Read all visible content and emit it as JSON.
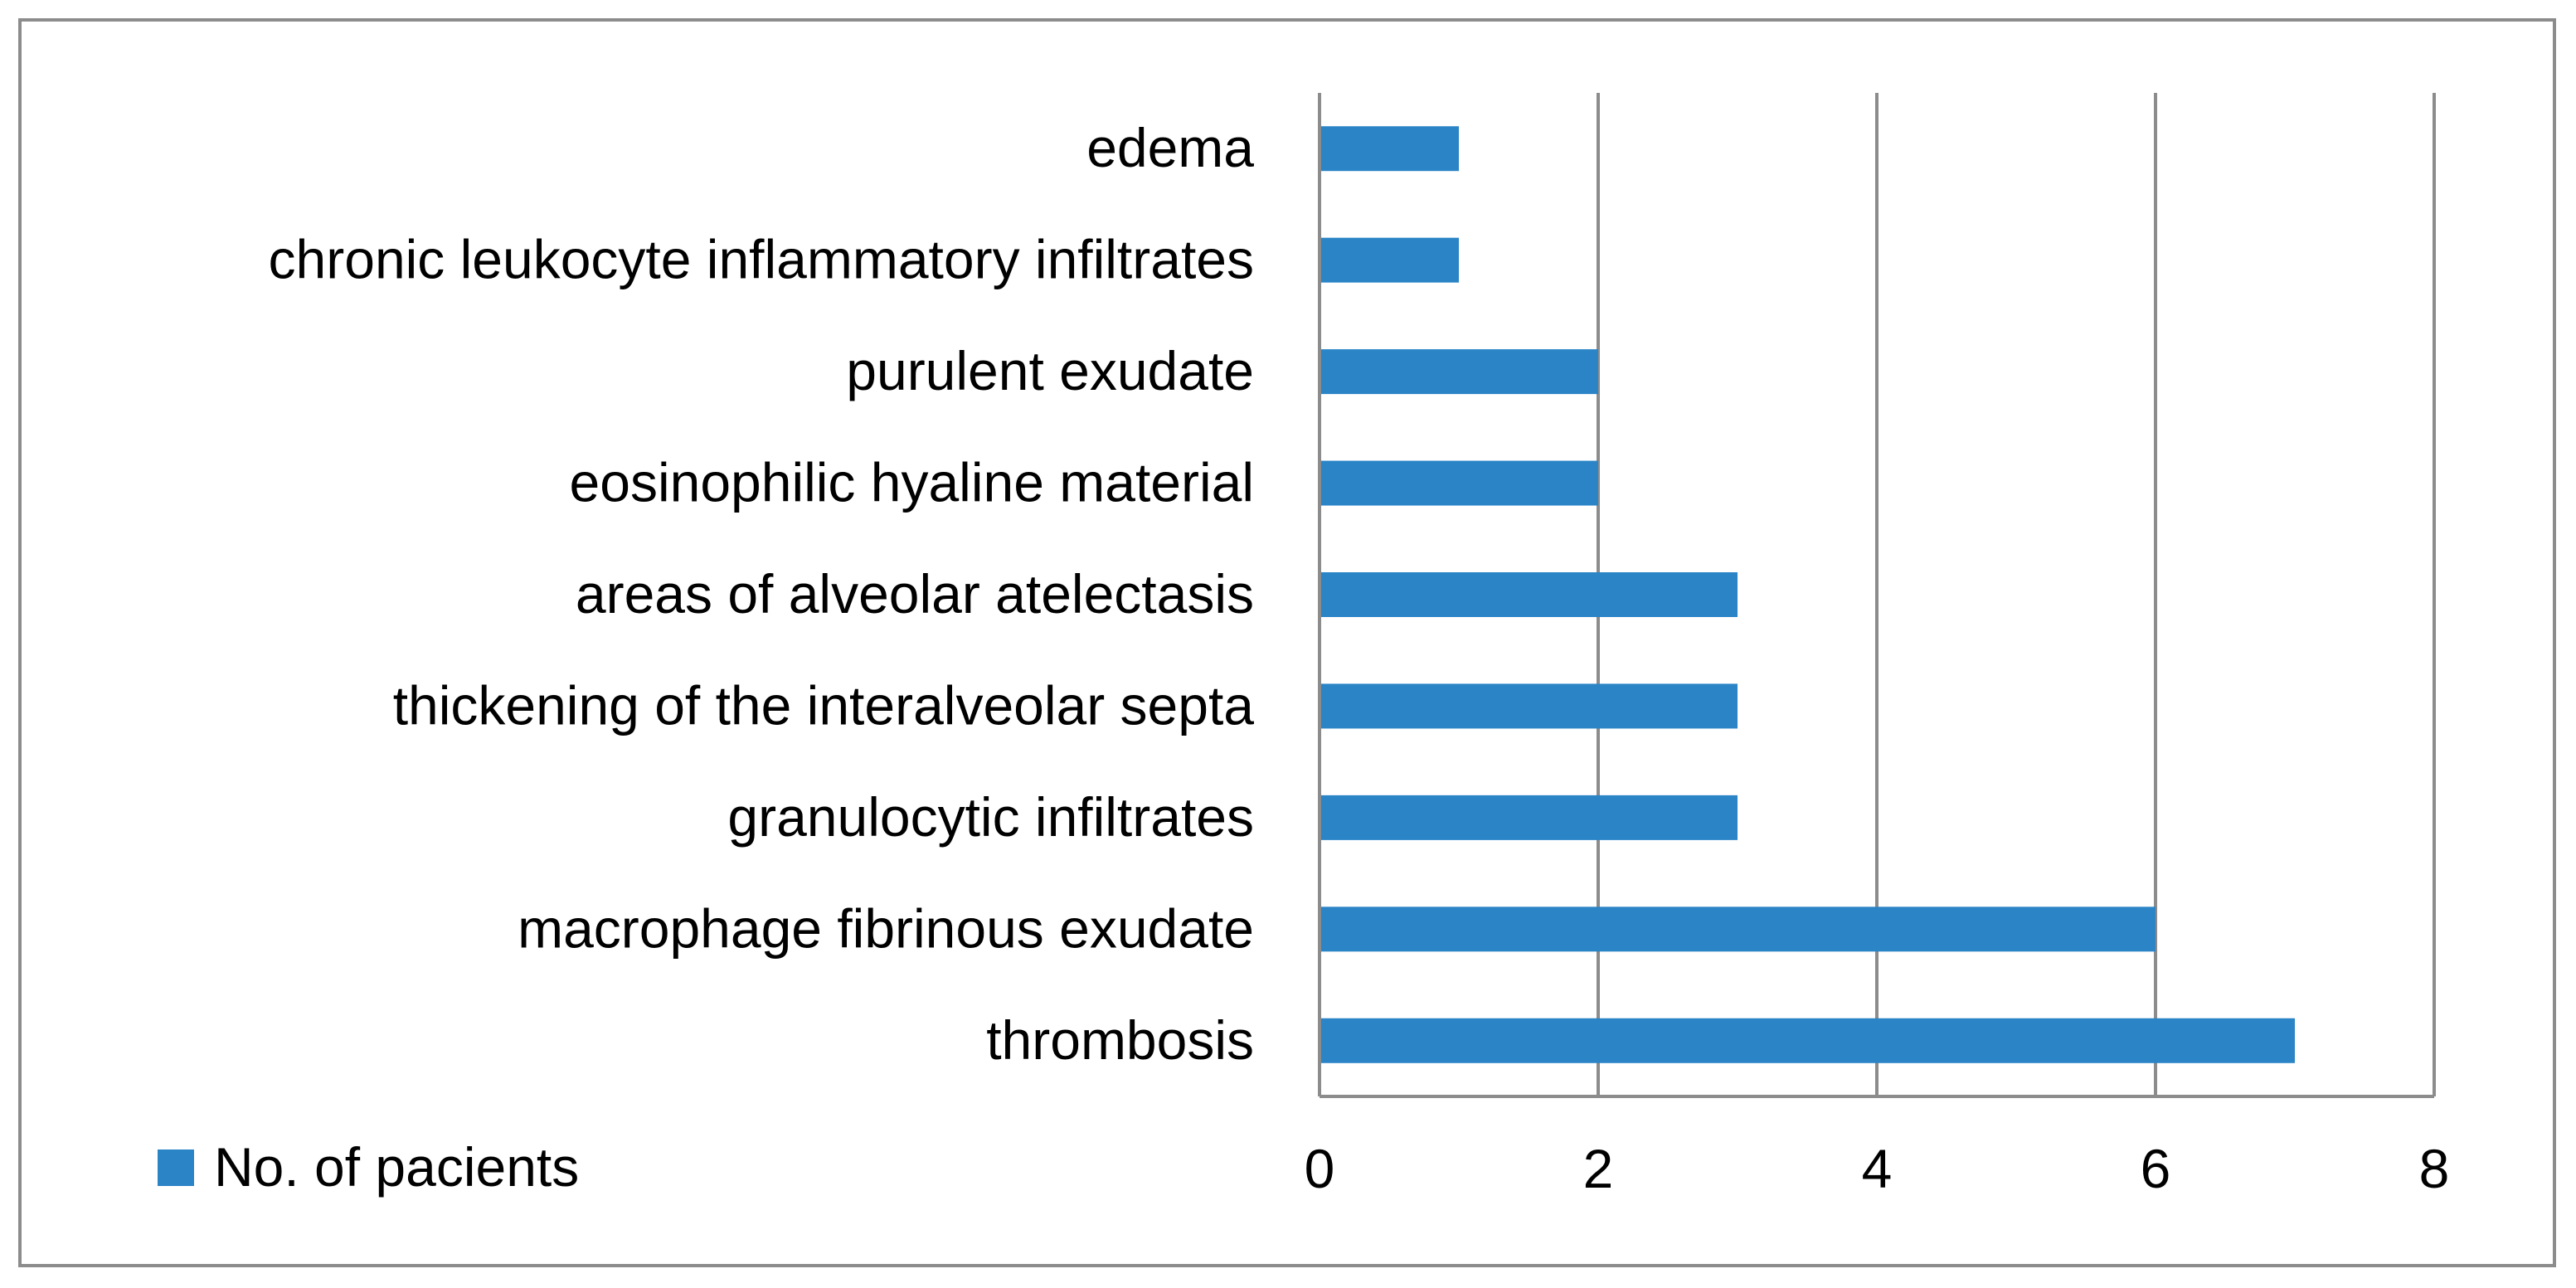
{
  "chart_data": {
    "type": "bar",
    "orientation": "horizontal",
    "title": "",
    "xlabel": "",
    "ylabel": "",
    "categories": [
      "thrombosis",
      "macrophage fibrinous exudate",
      "granulocytic infiltrates",
      "thickening of the interalveolar septa",
      "areas of alveolar atelectasis",
      "eosinophilic hyaline material",
      "purulent exudate",
      "chronic leukocyte inflammatory infiltrates",
      "edema"
    ],
    "series": [
      {
        "name": "No. of pacients",
        "values": [
          7,
          6,
          3,
          3,
          3,
          2,
          2,
          1,
          1
        ],
        "color": "#2a84c6"
      }
    ],
    "xlim": [
      0,
      8
    ],
    "x_ticks": [
      "0",
      "2",
      "4",
      "6",
      "8"
    ],
    "grid": "vertical",
    "legend_position": "bottom-left",
    "gridline_color": "#8c8c8c",
    "axis_color": "#8c8c8c",
    "frame_color": "#8c8c8c"
  }
}
